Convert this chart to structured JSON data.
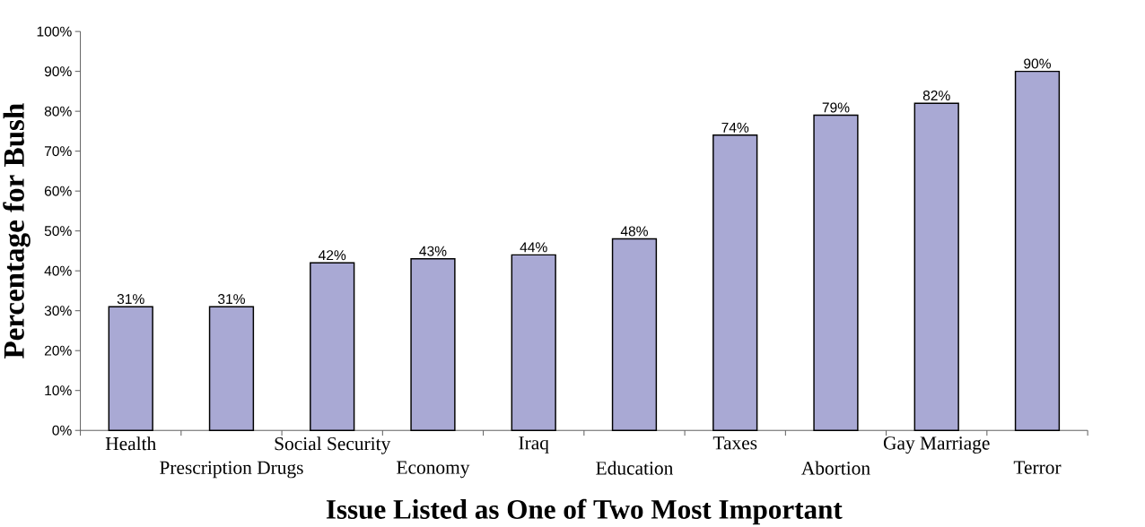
{
  "chart_data": {
    "type": "bar",
    "xlabel": "Issue Listed as One of Two Most Important",
    "ylabel": "Percentage for Bush",
    "categories": [
      "Health",
      "Prescription Drugs",
      "Social Security",
      "Economy",
      "Iraq",
      "Education",
      "Taxes",
      "Abortion",
      "Gay Marriage",
      "Terror"
    ],
    "values": [
      31,
      31,
      42,
      43,
      44,
      48,
      74,
      79,
      82,
      90
    ],
    "value_labels": [
      "31%",
      "31%",
      "42%",
      "43%",
      "44%",
      "48%",
      "74%",
      "79%",
      "82%",
      "90%"
    ],
    "color": "#a9a9d4",
    "ylim": [
      0,
      100
    ],
    "yticks": [
      {
        "value": 0,
        "label": "0%"
      },
      {
        "value": 10,
        "label": "10%"
      },
      {
        "value": 20,
        "label": "20%"
      },
      {
        "value": 30,
        "label": "30%"
      },
      {
        "value": 40,
        "label": "40%"
      },
      {
        "value": 50,
        "label": "50%"
      },
      {
        "value": 60,
        "label": "60%"
      },
      {
        "value": 70,
        "label": "70%"
      },
      {
        "value": 80,
        "label": "80%"
      },
      {
        "value": 90,
        "label": "90%"
      },
      {
        "value": 100,
        "label": "100%"
      }
    ],
    "grid": false
  }
}
